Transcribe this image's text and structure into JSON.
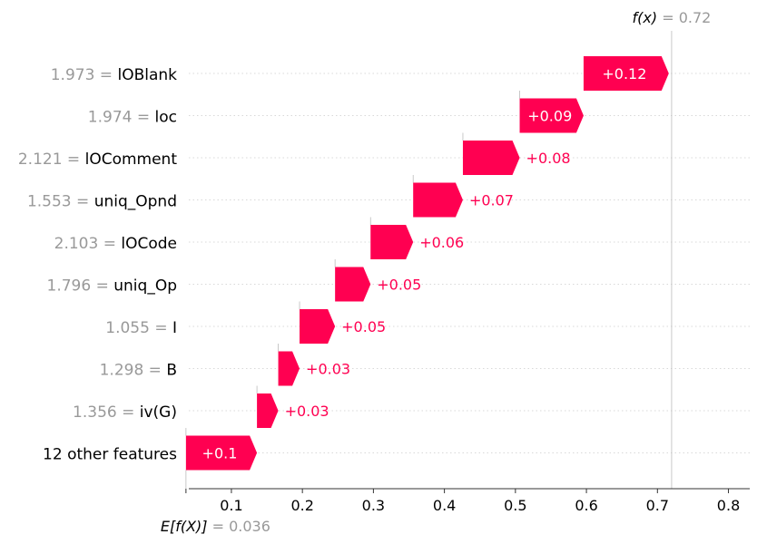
{
  "chart_data": {
    "type": "waterfall",
    "fx_label": "f(x)",
    "fx_value": "0.72",
    "fx_num": 0.72,
    "ex_label": "E[f(X)]",
    "ex_value": "0.036",
    "ex_num": 0.036,
    "xlim": [
      0.04,
      0.83
    ],
    "xticks": [
      "0.1",
      "0.2",
      "0.3",
      "0.4",
      "0.5",
      "0.6",
      "0.7",
      "0.8"
    ],
    "positive_color": "#ff0051",
    "features": [
      {
        "value": "1.973",
        "name": "lOBlank",
        "contribution": 0.12,
        "label": "+0.12"
      },
      {
        "value": "1.974",
        "name": "loc",
        "contribution": 0.09,
        "label": "+0.09"
      },
      {
        "value": "2.121",
        "name": "lOComment",
        "contribution": 0.08,
        "label": "+0.08"
      },
      {
        "value": "1.553",
        "name": "uniq_Opnd",
        "contribution": 0.07,
        "label": "+0.07"
      },
      {
        "value": "2.103",
        "name": "lOCode",
        "contribution": 0.06,
        "label": "+0.06"
      },
      {
        "value": "1.796",
        "name": "uniq_Op",
        "contribution": 0.05,
        "label": "+0.05"
      },
      {
        "value": "1.055",
        "name": "I",
        "contribution": 0.05,
        "label": "+0.05"
      },
      {
        "value": "1.298",
        "name": "B",
        "contribution": 0.03,
        "label": "+0.03"
      },
      {
        "value": "1.356",
        "name": "iv(G)",
        "contribution": 0.03,
        "label": "+0.03"
      },
      {
        "value": "",
        "name": "12 other features",
        "contribution": 0.1,
        "label": "+0.1"
      }
    ]
  }
}
